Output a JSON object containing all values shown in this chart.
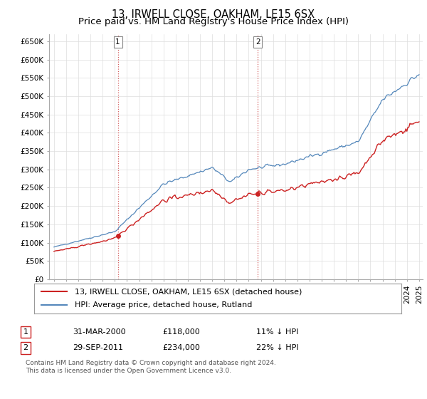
{
  "title": "13, IRWELL CLOSE, OAKHAM, LE15 6SX",
  "subtitle": "Price paid vs. HM Land Registry's House Price Index (HPI)",
  "ylim": [
    0,
    670000
  ],
  "yticks": [
    0,
    50000,
    100000,
    150000,
    200000,
    250000,
    300000,
    350000,
    400000,
    450000,
    500000,
    550000,
    600000,
    650000
  ],
  "ytick_labels": [
    "£0",
    "£50K",
    "£100K",
    "£150K",
    "£200K",
    "£250K",
    "£300K",
    "£350K",
    "£400K",
    "£450K",
    "£500K",
    "£550K",
    "£600K",
    "£650K"
  ],
  "hpi_color": "#5588bb",
  "price_color": "#cc2222",
  "vline_color": "#cc4444",
  "grid_color": "#dddddd",
  "background_color": "#ffffff",
  "legend_label_price": "13, IRWELL CLOSE, OAKHAM, LE15 6SX (detached house)",
  "legend_label_hpi": "HPI: Average price, detached house, Rutland",
  "annotation1_date": "31-MAR-2000",
  "annotation1_price": "£118,000",
  "annotation1_pct": "11% ↓ HPI",
  "annotation1_year": 2000.25,
  "annotation1_value": 118000,
  "annotation2_date": "29-SEP-2011",
  "annotation2_price": "£234,000",
  "annotation2_pct": "22% ↓ HPI",
  "annotation2_year": 2011.75,
  "annotation2_value": 234000,
  "footnote_line1": "Contains HM Land Registry data © Crown copyright and database right 2024.",
  "footnote_line2": "This data is licensed under the Open Government Licence v3.0.",
  "title_fontsize": 10.5,
  "subtitle_fontsize": 9.5,
  "tick_fontsize": 7.5,
  "legend_fontsize": 8,
  "annotation_fontsize": 8
}
